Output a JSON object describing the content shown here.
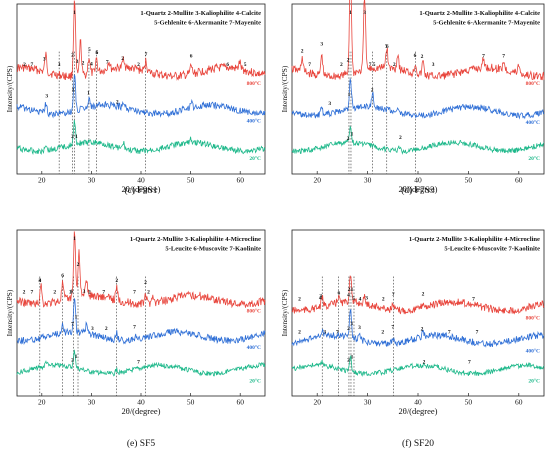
{
  "chart_data": [
    {
      "type": "line",
      "panel_label": "(c) F9S1",
      "legend": "1-Quartz 2-Mullite 3-Kaliophilite 4-Calcite\n5-Gehlenite 6-Akermanite 7-Mayenite",
      "xlabel": "2θ/(degree)",
      "ylabel": "Intensity/(CPS)",
      "xlim": [
        15,
        65
      ],
      "xticks": [
        20,
        30,
        40,
        50,
        60
      ],
      "series": [
        {
          "name": "800°C",
          "color": "#e8453c",
          "baseline": 0.4,
          "noise": 0.05,
          "peaks": [
            [
              26.6,
              0.44
            ],
            [
              20.8,
              0.1
            ],
            [
              27.8,
              0.2
            ],
            [
              29.5,
              0.1
            ],
            [
              31.0,
              0.08
            ],
            [
              33.5,
              0.05
            ],
            [
              36.5,
              0.06
            ],
            [
              41.0,
              0.06
            ],
            [
              50.1,
              0.05
            ],
            [
              59.9,
              0.04
            ]
          ],
          "annotations": [
            {
              "x": 16.5,
              "t": "2"
            },
            {
              "x": 18.0,
              "t": "7"
            },
            {
              "x": 20.5,
              "t": "3"
            },
            {
              "x": 23.5,
              "t": "3"
            },
            {
              "x": 26.6,
              "t": "1"
            },
            {
              "x": 26.2,
              "t": "2"
            },
            {
              "x": 27.1,
              "t": "3"
            },
            {
              "x": 28.3,
              "t": "2"
            },
            {
              "x": 29.6,
              "t": "5"
            },
            {
              "x": 30.0,
              "t": "4"
            },
            {
              "x": 31.1,
              "t": "6"
            },
            {
              "x": 31.1,
              "t": "5"
            },
            {
              "x": 33.2,
              "t": "7"
            },
            {
              "x": 36.3,
              "t": "2"
            },
            {
              "x": 39.5,
              "t": "2"
            },
            {
              "x": 41.0,
              "t": "7"
            },
            {
              "x": 50.1,
              "t": "6"
            },
            {
              "x": 57.5,
              "t": "6"
            },
            {
              "x": 61.0,
              "t": "5"
            }
          ]
        },
        {
          "name": "400°C",
          "color": "#2f6fd6",
          "baseline": 0.62,
          "noise": 0.04,
          "peaks": [
            [
              26.6,
              0.22
            ],
            [
              20.8,
              0.06
            ],
            [
              29.5,
              0.06
            ],
            [
              36.5,
              0.04
            ],
            [
              50.1,
              0.03
            ]
          ],
          "annotations": [
            {
              "x": 21.0,
              "t": "3"
            },
            {
              "x": 26.3,
              "t": "1"
            },
            {
              "x": 29.4,
              "t": "1"
            },
            {
              "x": 35.2,
              "t": "2"
            }
          ]
        },
        {
          "name": "20°C",
          "color": "#1db88a",
          "baseline": 0.84,
          "noise": 0.035,
          "peaks": [
            [
              26.6,
              0.13
            ],
            [
              20.8,
              0.04
            ],
            [
              36.5,
              0.03
            ],
            [
              50.1,
              0.02
            ]
          ],
          "annotations": [
            {
              "x": 26.2,
              "t": "2"
            },
            {
              "x": 27.0,
              "t": "1"
            }
          ]
        }
      ],
      "dashed_x": [
        23.5,
        26.2,
        26.6,
        29.5,
        31.0,
        40.9
      ]
    },
    {
      "type": "line",
      "panel_label": "(d) F7S3",
      "legend": "1-Quartz 2-Mullite 3-Kaliophilite 4-Calcite\n5-Gehlenite 6-Akermanite 7-Mayenite",
      "xlabel": "2θ/(degree)",
      "ylabel": "Intensity/(CPS)",
      "xlim": [
        15,
        65
      ],
      "xticks": [
        20,
        30,
        40,
        50,
        60
      ],
      "series": [
        {
          "name": "800°C",
          "color": "#e8453c",
          "baseline": 0.4,
          "noise": 0.05,
          "peaks": [
            [
              26.6,
              0.62
            ],
            [
              29.4,
              0.44
            ],
            [
              20.9,
              0.12
            ],
            [
              17.0,
              0.08
            ],
            [
              33.8,
              0.12
            ],
            [
              36.0,
              0.09
            ],
            [
              39.5,
              0.06
            ],
            [
              41.0,
              0.08
            ],
            [
              53.0,
              0.05
            ],
            [
              57.0,
              0.05
            ],
            [
              60.0,
              0.05
            ]
          ],
          "annotations": [
            {
              "x": 26.6,
              "t": "1"
            },
            {
              "x": 26.1,
              "t": "2"
            },
            {
              "x": 29.4,
              "t": "3"
            },
            {
              "x": 17.0,
              "t": "2"
            },
            {
              "x": 18.5,
              "t": "7"
            },
            {
              "x": 20.9,
              "t": "3"
            },
            {
              "x": 24.8,
              "t": "2"
            },
            {
              "x": 30.5,
              "t": "7"
            },
            {
              "x": 31.3,
              "t": "5"
            },
            {
              "x": 33.7,
              "t": "7"
            },
            {
              "x": 33.9,
              "t": "6"
            },
            {
              "x": 35.3,
              "t": "2"
            },
            {
              "x": 39.4,
              "t": "6"
            },
            {
              "x": 40.8,
              "t": "2"
            },
            {
              "x": 43.0,
              "t": "3"
            },
            {
              "x": 53.0,
              "t": "7"
            },
            {
              "x": 57.0,
              "t": "7"
            }
          ]
        },
        {
          "name": "400°C",
          "color": "#2f6fd6",
          "baseline": 0.63,
          "noise": 0.035,
          "peaks": [
            [
              26.6,
              0.17
            ],
            [
              31.0,
              0.09
            ],
            [
              20.9,
              0.04
            ],
            [
              36.2,
              0.03
            ]
          ],
          "annotations": [
            {
              "x": 22.5,
              "t": "3"
            },
            {
              "x": 26.3,
              "t": "1"
            },
            {
              "x": 30.9,
              "t": "2"
            }
          ]
        },
        {
          "name": "20°C",
          "color": "#1db88a",
          "baseline": 0.84,
          "noise": 0.03,
          "peaks": [
            [
              26.6,
              0.1
            ],
            [
              36.2,
              0.03
            ]
          ],
          "annotations": [
            {
              "x": 26.1,
              "t": "2"
            },
            {
              "x": 26.9,
              "t": "1"
            },
            {
              "x": 36.5,
              "t": "2"
            }
          ]
        }
      ],
      "dashed_x": [
        26.3,
        26.7,
        31.0,
        33.8,
        39.5
      ]
    },
    {
      "type": "line",
      "panel_label": "(e) SF5",
      "legend": "1-Quartz 2-Mullite 3-Kaliophilite 4-Microcline\n5-Leucite 6-Muscovite 7-Kaolinite",
      "xlabel": "2θ/(degree)",
      "ylabel": "Intensity/(CPS)",
      "xlim": [
        15,
        65
      ],
      "xticks": [
        20,
        30,
        40,
        50,
        60
      ],
      "series": [
        {
          "name": "800°C",
          "color": "#e8453c",
          "baseline": 0.42,
          "noise": 0.05,
          "peaks": [
            [
              26.6,
              0.4
            ],
            [
              27.5,
              0.28
            ],
            [
              24.2,
              0.1
            ],
            [
              19.8,
              0.12
            ],
            [
              29.0,
              0.1
            ],
            [
              35.1,
              0.07
            ],
            [
              40.9,
              0.06
            ],
            [
              42.3,
              0.05
            ]
          ],
          "annotations": [
            {
              "x": 16.4,
              "t": "2"
            },
            {
              "x": 18.0,
              "t": "7"
            },
            {
              "x": 19.6,
              "t": "4"
            },
            {
              "x": 19.6,
              "t": "3"
            },
            {
              "x": 22.6,
              "t": "2"
            },
            {
              "x": 24.2,
              "t": "6"
            },
            {
              "x": 25.8,
              "t": "2"
            },
            {
              "x": 26.6,
              "t": "1"
            },
            {
              "x": 27.3,
              "t": "2"
            },
            {
              "x": 26.0,
              "t": "6"
            },
            {
              "x": 28.5,
              "t": "3"
            },
            {
              "x": 29.6,
              "t": "2"
            },
            {
              "x": 32.5,
              "t": "7"
            },
            {
              "x": 35.1,
              "t": "2"
            },
            {
              "x": 38.7,
              "t": "7"
            },
            {
              "x": 40.9,
              "t": "2"
            },
            {
              "x": 41.5,
              "t": "2"
            }
          ]
        },
        {
          "name": "400°C",
          "color": "#2f6fd6",
          "baseline": 0.64,
          "noise": 0.04,
          "peaks": [
            [
              26.6,
              0.22
            ],
            [
              24.2,
              0.05
            ],
            [
              29.0,
              0.05
            ],
            [
              35.1,
              0.04
            ],
            [
              39.0,
              0.03
            ]
          ],
          "annotations": [
            {
              "x": 26.2,
              "t": "7"
            },
            {
              "x": 26.9,
              "t": "1"
            },
            {
              "x": 30.2,
              "t": "3"
            },
            {
              "x": 33.0,
              "t": "2"
            },
            {
              "x": 38.7,
              "t": "7"
            }
          ]
        },
        {
          "name": "20°C",
          "color": "#1db88a",
          "baseline": 0.84,
          "noise": 0.03,
          "peaks": [
            [
              26.6,
              0.1
            ],
            [
              20.9,
              0.03
            ],
            [
              35.1,
              0.02
            ]
          ],
          "annotations": [
            {
              "x": 26.2,
              "t": "2"
            },
            {
              "x": 26.9,
              "t": "1"
            },
            {
              "x": 39.5,
              "t": "7"
            }
          ]
        }
      ],
      "dashed_x": [
        19.6,
        24.2,
        26.4,
        27.3,
        35.1,
        40.9
      ]
    },
    {
      "type": "line",
      "panel_label": "(f) SF20",
      "legend": "1-Quartz 2-Mullite 3-Kaliophilite 4-Microcline\n5-Leucite 6-Muscovite 7-Kaolinite",
      "xlabel": "2θ/(degree)",
      "ylabel": "Intensity/(CPS)",
      "xlim": [
        15,
        65
      ],
      "xticks": [
        20,
        30,
        40,
        50,
        60
      ],
      "series": [
        {
          "name": "800°C",
          "color": "#e8453c",
          "baseline": 0.46,
          "noise": 0.045,
          "peaks": [
            [
              26.6,
              0.18
            ],
            [
              21.0,
              0.05
            ],
            [
              24.2,
              0.04
            ],
            [
              29.4,
              0.04
            ],
            [
              35.0,
              0.03
            ],
            [
              41.0,
              0.03
            ]
          ],
          "annotations": [
            {
              "x": 16.5,
              "t": "2"
            },
            {
              "x": 20.6,
              "t": "4"
            },
            {
              "x": 20.7,
              "t": "3"
            },
            {
              "x": 24.3,
              "t": "6"
            },
            {
              "x": 26.2,
              "t": "4"
            },
            {
              "x": 26.3,
              "t": "2"
            },
            {
              "x": 26.9,
              "t": "1"
            },
            {
              "x": 27.2,
              "t": "5"
            },
            {
              "x": 28.5,
              "t": "4"
            },
            {
              "x": 29.8,
              "t": "3"
            },
            {
              "x": 33.1,
              "t": "2"
            },
            {
              "x": 35.1,
              "t": "7"
            },
            {
              "x": 41.0,
              "t": "2"
            },
            {
              "x": 51.0,
              "t": "7"
            }
          ]
        },
        {
          "name": "400°C",
          "color": "#2f6fd6",
          "baseline": 0.66,
          "noise": 0.04,
          "peaks": [
            [
              26.6,
              0.16
            ],
            [
              21.0,
              0.04
            ],
            [
              28.5,
              0.03
            ],
            [
              35.0,
              0.03
            ],
            [
              41.0,
              0.03
            ]
          ],
          "annotations": [
            {
              "x": 16.5,
              "t": "2"
            },
            {
              "x": 21.5,
              "t": "3"
            },
            {
              "x": 24.0,
              "t": "7"
            },
            {
              "x": 26.2,
              "t": "2"
            },
            {
              "x": 26.9,
              "t": "1"
            },
            {
              "x": 28.4,
              "t": "3"
            },
            {
              "x": 33.0,
              "t": "2"
            },
            {
              "x": 35.0,
              "t": "7"
            },
            {
              "x": 40.8,
              "t": "2"
            },
            {
              "x": 46.2,
              "t": "7"
            },
            {
              "x": 51.7,
              "t": "7"
            }
          ]
        },
        {
          "name": "20°C",
          "color": "#1db88a",
          "baseline": 0.84,
          "noise": 0.03,
          "peaks": [
            [
              26.6,
              0.09
            ],
            [
              21.0,
              0.02
            ]
          ],
          "annotations": [
            {
              "x": 26.2,
              "t": "2"
            },
            {
              "x": 26.9,
              "t": "1"
            },
            {
              "x": 41.2,
              "t": "2"
            },
            {
              "x": 50.2,
              "t": "7"
            }
          ]
        }
      ],
      "dashed_x": [
        21.0,
        24.2,
        26.3,
        26.7,
        27.3,
        35.1
      ]
    }
  ]
}
